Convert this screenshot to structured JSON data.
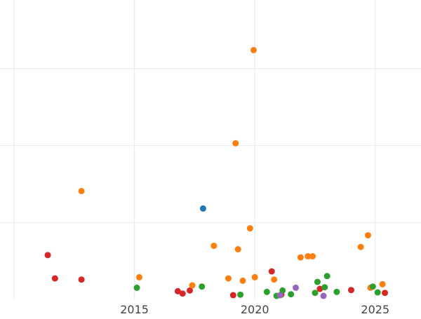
{
  "chart_data": {
    "type": "scatter",
    "title": "",
    "xlabel": "",
    "ylabel": "",
    "grid": true,
    "legend": "none",
    "xlim": [
      2010,
      2026.9
    ],
    "ylim": [
      -0.5,
      12.35
    ],
    "x_ticks": [
      {
        "value": 2010,
        "label": ""
      },
      {
        "value": 2015,
        "label": "2015"
      },
      {
        "value": 2020,
        "label": "2020"
      },
      {
        "value": 2025,
        "label": "2025"
      }
    ],
    "y_ticks": [
      {
        "value": 2.8,
        "label": ""
      },
      {
        "value": 6.1,
        "label": ""
      },
      {
        "value": 9.4,
        "label": ""
      }
    ],
    "colors": {
      "red": "#d62728",
      "orange": "#ff7f0e",
      "green": "#2ca02c",
      "blue": "#1f77b4",
      "purple": "#9467bd"
    },
    "series": [
      {
        "color": "red",
        "points": [
          [
            2011.4,
            1.4
          ],
          [
            2011.7,
            0.4
          ],
          [
            2012.8,
            0.35
          ],
          [
            2016.8,
            -0.15
          ],
          [
            2017.0,
            -0.25
          ],
          [
            2017.3,
            -0.12
          ],
          [
            2019.1,
            -0.32
          ],
          [
            2020.7,
            0.7
          ],
          [
            2021.1,
            -0.3
          ],
          [
            2022.7,
            -0.05
          ],
          [
            2024.0,
            -0.1
          ],
          [
            2025.4,
            -0.22
          ]
        ]
      },
      {
        "color": "orange",
        "points": [
          [
            2012.8,
            4.15
          ],
          [
            2015.2,
            0.45
          ],
          [
            2017.4,
            0.1
          ],
          [
            2018.3,
            1.8
          ],
          [
            2018.9,
            0.4
          ],
          [
            2019.2,
            6.2
          ],
          [
            2019.3,
            1.65
          ],
          [
            2019.5,
            0.3
          ],
          [
            2019.8,
            2.55
          ],
          [
            2019.95,
            10.2
          ],
          [
            2020.0,
            0.45
          ],
          [
            2020.8,
            0.35
          ],
          [
            2021.9,
            1.3
          ],
          [
            2022.2,
            1.35
          ],
          [
            2022.4,
            1.35
          ],
          [
            2024.4,
            1.75
          ],
          [
            2024.7,
            2.25
          ],
          [
            2024.8,
            0.0
          ],
          [
            2025.3,
            0.15
          ]
        ]
      },
      {
        "color": "green",
        "points": [
          [
            2015.1,
            0.0
          ],
          [
            2017.8,
            0.05
          ],
          [
            2019.4,
            -0.3
          ],
          [
            2020.5,
            -0.18
          ],
          [
            2020.9,
            -0.35
          ],
          [
            2021.15,
            -0.12
          ],
          [
            2021.5,
            -0.28
          ],
          [
            2022.5,
            -0.22
          ],
          [
            2022.6,
            0.25
          ],
          [
            2022.9,
            0.02
          ],
          [
            2023.0,
            0.5
          ],
          [
            2023.4,
            -0.18
          ],
          [
            2024.9,
            0.05
          ],
          [
            2025.1,
            -0.2
          ]
        ]
      },
      {
        "color": "blue",
        "points": [
          [
            2017.85,
            3.4
          ]
        ]
      },
      {
        "color": "purple",
        "points": [
          [
            2021.05,
            -0.32
          ],
          [
            2021.7,
            0.0
          ],
          [
            2022.85,
            -0.35
          ]
        ]
      }
    ]
  }
}
